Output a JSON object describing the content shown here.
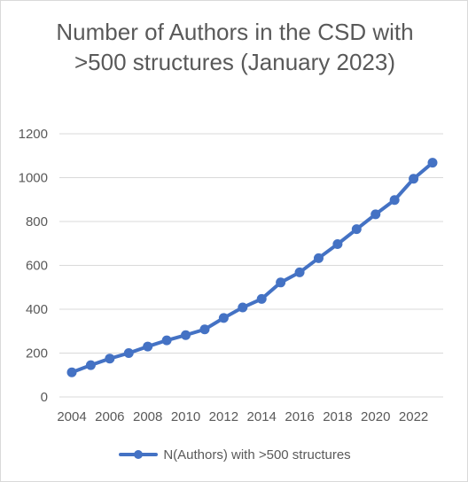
{
  "chart_data": {
    "type": "line",
    "title": "Number of Authors in the CSD with >500 structures (January 2023)",
    "xlabel": "",
    "ylabel": "",
    "x": [
      2004,
      2005,
      2006,
      2007,
      2008,
      2009,
      2010,
      2011,
      2012,
      2013,
      2014,
      2015,
      2016,
      2017,
      2018,
      2019,
      2020,
      2021,
      2022,
      2023
    ],
    "x_tick_labels": [
      "2004",
      "2006",
      "2008",
      "2010",
      "2012",
      "2014",
      "2016",
      "2018",
      "2020",
      "2022"
    ],
    "y_tick_labels": [
      "0",
      "200",
      "400",
      "600",
      "800",
      "1000",
      "1200"
    ],
    "ylim": [
      0,
      1200
    ],
    "grid": true,
    "legend_position": "bottom",
    "series": [
      {
        "name": "N(Authors) with >500 structures",
        "color": "#4472c4",
        "values": [
          112,
          145,
          175,
          200,
          230,
          258,
          282,
          308,
          360,
          408,
          447,
          522,
          568,
          633,
          697,
          765,
          833,
          898,
          995,
          1068
        ]
      }
    ]
  }
}
